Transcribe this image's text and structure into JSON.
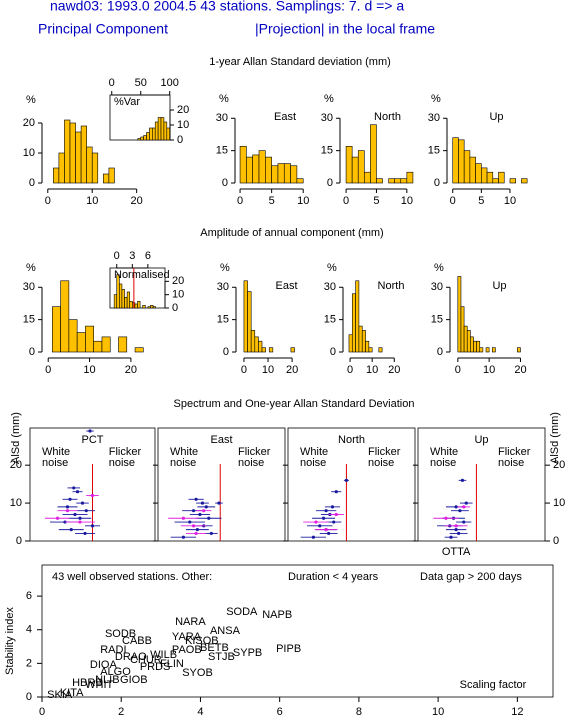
{
  "header": {
    "title": "nawd03: 1993.0 2004.5 43  stations. Samplings: 7. d => a",
    "left": "Principal Component",
    "right": "|Projection| in the local frame",
    "sections": [
      "1-year Allan Standard deviation  (mm)",
      "Amplitude of annual component (mm)",
      "Spectrum and One-year Allan Standard Deviation"
    ]
  },
  "chart_data": [
    {
      "type": "histogram",
      "ylabel": "%",
      "color": "#ffc000",
      "bins": [
        1.25,
        2.5,
        3.75,
        5,
        6.25,
        7.5,
        8.75,
        10,
        11.25,
        12.5,
        13.75,
        15
      ],
      "values": [
        5,
        10,
        21,
        20,
        17,
        19,
        12,
        10,
        0,
        3,
        5
      ],
      "xlim": [
        -1.3,
        23
      ],
      "ylim": [
        0,
        27
      ],
      "xticks": [
        0,
        10,
        20
      ],
      "yticks": [
        0,
        10,
        20
      ]
    },
    {
      "type": "histogram",
      "label": "%Var",
      "color": "#ffc000",
      "bins": [
        45,
        50,
        55,
        60,
        65,
        70,
        75,
        80,
        85,
        90,
        95,
        100
      ],
      "values": [
        1,
        2,
        3,
        5,
        8,
        8,
        12,
        15,
        15,
        12,
        8
      ],
      "xlim": [
        -3,
        100.5
      ],
      "ylim": [
        0,
        30
      ],
      "xticks": [
        0,
        50,
        100
      ],
      "yticks": [
        0,
        10,
        20
      ]
    },
    {
      "type": "histogram",
      "ylabel": "%",
      "label": "East",
      "color": "#ffc000",
      "bins": [
        0,
        1,
        2,
        3,
        4,
        5,
        6,
        7,
        8,
        9,
        10
      ],
      "values": [
        17,
        12,
        13,
        15,
        12,
        8,
        9,
        9,
        8,
        2
      ],
      "xlim": [
        -0.8,
        12.5
      ],
      "ylim": [
        0,
        38
      ],
      "xticks": [
        0,
        5,
        10
      ],
      "yticks": [
        0,
        15,
        30
      ]
    },
    {
      "type": "histogram",
      "ylabel": "%",
      "label": "North",
      "color": "#ffc000",
      "bins": [
        0,
        1,
        2,
        3,
        4,
        5,
        6,
        7,
        8,
        9,
        10,
        11
      ],
      "values": [
        17,
        12,
        15,
        5,
        27,
        2,
        0,
        2,
        2,
        2,
        5
      ],
      "xlim": [
        -1,
        12
      ],
      "ylim": [
        0,
        38
      ],
      "xticks": [
        0,
        5,
        10
      ],
      "yticks": [
        0,
        15,
        30
      ]
    },
    {
      "type": "histogram",
      "ylabel": "%",
      "label": "Up",
      "color": "#ffc000",
      "bins": [
        0,
        1,
        2,
        3,
        4,
        5,
        6,
        7,
        8,
        9,
        10,
        11,
        12,
        13
      ],
      "values": [
        21,
        20,
        15,
        12,
        9,
        7,
        5,
        2,
        5,
        0,
        2,
        0,
        2
      ],
      "xlim": [
        -1,
        13.5
      ],
      "ylim": [
        0,
        38
      ],
      "xticks": [
        0,
        5,
        10
      ],
      "yticks": [
        0,
        15,
        30
      ]
    },
    {
      "type": "histogram",
      "ylabel": "%",
      "color": "#ffc000",
      "bins": [
        1,
        3,
        5,
        7,
        9,
        11,
        13,
        15,
        17,
        19,
        21,
        23,
        25
      ],
      "values": [
        21,
        33,
        15,
        9,
        12,
        5,
        7,
        0,
        7,
        0,
        2,
        0
      ],
      "xlim": [
        -1.5,
        28
      ],
      "ylim": [
        0,
        38
      ],
      "xticks": [
        0,
        10,
        20
      ],
      "yticks": [
        0,
        15,
        30
      ]
    },
    {
      "type": "histogram",
      "label": "Normalised",
      "color": "#ffc000",
      "vline": 3.3,
      "vline_color": "#e00000",
      "bins": [
        -0.5,
        0,
        0.5,
        1,
        1.5,
        2,
        2.5,
        3,
        3.5,
        4,
        4.5,
        5,
        5.5,
        6,
        6.5,
        7,
        7.5
      ],
      "values": [
        10,
        25,
        18,
        14,
        8,
        12,
        5,
        4,
        3,
        5,
        0,
        2,
        0,
        1,
        2,
        1
      ],
      "xlim": [
        -1.3,
        9.3
      ],
      "ylim": [
        0,
        30
      ],
      "xticks": [
        0,
        3,
        6
      ],
      "yticks": [
        0,
        10,
        20
      ]
    },
    {
      "type": "histogram",
      "ylabel": "%",
      "label": "East",
      "color": "#ffc000",
      "bins": [
        0,
        1.5,
        3,
        4.5,
        6,
        7.5,
        9,
        10.5,
        12,
        13.5,
        15,
        16.5,
        18,
        19.5,
        21
      ],
      "values": [
        33,
        28,
        10,
        7,
        5,
        2,
        0,
        2,
        0,
        0,
        0,
        0,
        0,
        2
      ],
      "xlim": [
        -3.3,
        32
      ],
      "ylim": [
        0,
        38
      ],
      "xticks": [
        0,
        10,
        20
      ],
      "yticks": [
        0,
        15,
        30
      ]
    },
    {
      "type": "histogram",
      "ylabel": "%",
      "label": "North",
      "color": "#ffc000",
      "bins": [
        -0.5,
        1,
        2.5,
        4,
        5.5,
        7,
        8.5,
        10,
        11.5,
        13,
        14.5
      ],
      "values": [
        8,
        27,
        33,
        12,
        10,
        5,
        2,
        0,
        0,
        2
      ],
      "xlim": [
        -3.2,
        33
      ],
      "ylim": [
        0,
        38
      ],
      "xticks": [
        0,
        10,
        20
      ],
      "yticks": [
        0,
        15,
        30
      ]
    },
    {
      "type": "histogram",
      "ylabel": "%",
      "label": "Up",
      "color": "#ffc000",
      "bins": [
        0,
        1,
        2,
        3,
        4,
        5,
        6,
        7,
        8,
        9,
        10,
        11,
        12,
        13,
        14,
        15,
        16,
        17,
        18,
        19,
        20
      ],
      "values": [
        35,
        21,
        12,
        10,
        7,
        5,
        5,
        2,
        0,
        2,
        0,
        2,
        0,
        0,
        0,
        0,
        0,
        0,
        0,
        2
      ],
      "xlim": [
        -2.5,
        24
      ],
      "ylim": [
        0,
        38
      ],
      "xticks": [
        0,
        10,
        20
      ],
      "yticks": [
        0,
        15,
        30
      ]
    },
    {
      "type": "scatter",
      "title": "PCT",
      "ylabel": "AlSd (mm)",
      "annotations": [
        "White noise",
        "Flicker noise"
      ],
      "vline": 0.5,
      "vline_color": "#e00000",
      "xlim": [
        0,
        1
      ],
      "ylim": [
        0,
        29.8
      ],
      "yticks": [
        0,
        10,
        20
      ],
      "series": [
        {
          "color": "#1a1aa0",
          "x": [
            0.35,
            0.38,
            0.32,
            0.42,
            0.3,
            0.45,
            0.36,
            0.4,
            0.28,
            0.5,
            0.33,
            0.44,
            0.48
          ],
          "values": [
            14,
            13,
            11,
            10,
            9,
            8,
            7,
            6,
            5,
            4,
            3,
            2,
            29
          ],
          "xerr": [
            0.05,
            0.04,
            0.06,
            0.05,
            0.08,
            0.07,
            0.1,
            0.09,
            0.12,
            0.06,
            0.1,
            0.08,
            0.03
          ]
        },
        {
          "color": "#e020e0",
          "x": [
            0.22,
            0.3,
            0.4,
            0.5
          ],
          "values": [
            6,
            8,
            5,
            12
          ],
          "xerr": [
            0.1,
            0.08,
            0.12,
            0.05
          ]
        }
      ]
    },
    {
      "type": "scatter",
      "title": "East",
      "annotations": [
        "White noise",
        "Flicker noise"
      ],
      "vline": 0.49,
      "vline_color": "#e00000",
      "xlim": [
        0,
        1
      ],
      "ylim": [
        0,
        29.8
      ],
      "yticks": [
        0,
        10,
        20
      ],
      "series": [
        {
          "color": "#1a1aa0",
          "x": [
            0.3,
            0.35,
            0.38,
            0.28,
            0.33,
            0.4,
            0.25,
            0.36,
            0.31,
            0.42,
            0.2,
            0.48
          ],
          "values": [
            11,
            10,
            9,
            8,
            7,
            6,
            5,
            4,
            3,
            2,
            1,
            10
          ],
          "xerr": [
            0.06,
            0.05,
            0.07,
            0.09,
            0.08,
            0.1,
            0.12,
            0.07,
            0.09,
            0.05,
            0.1,
            0.03
          ]
        },
        {
          "color": "#e020e0",
          "x": [
            0.2,
            0.28,
            0.36,
            0.3
          ],
          "values": [
            6,
            4,
            8,
            2
          ],
          "xerr": [
            0.12,
            0.1,
            0.06,
            0.08
          ]
        }
      ]
    },
    {
      "type": "scatter",
      "title": "North",
      "annotations": [
        "White noise",
        "Flicker noise"
      ],
      "vline": 0.46,
      "vline_color": "#e00000",
      "xlim": [
        0,
        1
      ],
      "ylim": [
        0,
        29.8
      ],
      "yticks": [
        0,
        10,
        20
      ],
      "series": [
        {
          "color": "#1a1aa0",
          "x": [
            0.38,
            0.35,
            0.3,
            0.33,
            0.28,
            0.36,
            0.25,
            0.3,
            0.32,
            0.2,
            0.46
          ],
          "values": [
            13,
            9,
            8,
            7,
            6,
            5,
            4,
            3,
            2,
            1,
            16
          ],
          "xerr": [
            0.04,
            0.06,
            0.08,
            0.07,
            0.09,
            0.06,
            0.1,
            0.08,
            0.07,
            0.1,
            0.02
          ]
        },
        {
          "color": "#e020e0",
          "x": [
            0.22,
            0.3,
            0.38
          ],
          "values": [
            5,
            3,
            7
          ],
          "xerr": [
            0.1,
            0.09,
            0.06
          ]
        }
      ]
    },
    {
      "type": "scatter",
      "title": "Up",
      "ylabel": "AlSd (mm)",
      "note": "OTTA",
      "annotations": [
        "White noise",
        "Flicker noise"
      ],
      "vline": 0.46,
      "vline_color": "#e00000",
      "xlim": [
        0,
        1
      ],
      "ylim": [
        0,
        29.8
      ],
      "yticks": [
        0,
        10,
        20
      ],
      "series": [
        {
          "color": "#1a1aa0",
          "x": [
            0.35,
            0.38,
            0.3,
            0.33,
            0.28,
            0.36,
            0.25,
            0.3,
            0.32,
            0.26
          ],
          "values": [
            16,
            10,
            9,
            8,
            6,
            5,
            4,
            3,
            2,
            1
          ],
          "xerr": [
            0.03,
            0.05,
            0.08,
            0.07,
            0.09,
            0.06,
            0.1,
            0.08,
            0.07,
            0.05
          ]
        },
        {
          "color": "#e020e0",
          "x": [
            0.22,
            0.3,
            0.36
          ],
          "values": [
            6,
            4,
            9
          ],
          "xerr": [
            0.1,
            0.09,
            0.05
          ]
        }
      ]
    },
    {
      "type": "label-scatter",
      "xlabel": "Scaling factor",
      "ylabel": "Stability index",
      "xlim": [
        0,
        12.9
      ],
      "ylim": [
        0,
        7.85
      ],
      "xticks": [
        0,
        2,
        4,
        6,
        8,
        10,
        12
      ],
      "yticks": [
        0,
        2,
        4,
        6
      ],
      "series": [
        {
          "name": "43  well observed stations. Other:",
          "color": "#0000c8",
          "labels": [
            "NARA",
            "ANSA",
            "YARA",
            "NAPB",
            "KISOB",
            "PAOB",
            "BETB",
            "STJB",
            "SYPB",
            "SYOB",
            "GIOB",
            "CHUR",
            "WILB",
            "PRDS",
            "ALGO",
            "DRAO",
            "FLIN",
            "NLIB"
          ],
          "x": [
            3.36,
            4.24,
            3.28,
            5.56,
            3.61,
            3.28,
            3.99,
            4.19,
            4.82,
            3.54,
            1.97,
            2.22,
            2.73,
            2.47,
            1.47,
            1.84,
            2.98,
            1.34
          ],
          "values": [
            4.46,
            3.93,
            3.57,
            4.88,
            3.33,
            2.8,
            2.92,
            2.38,
            2.62,
            1.43,
            1.01,
            2.2,
            2.5,
            1.79,
            1.49,
            2.38,
            1.96,
            1.01
          ]
        },
        {
          "name": "Duration < 4 years",
          "color": "#e020e0",
          "labels": [
            "SODA",
            "PIPB",
            "RADI",
            "WHIT",
            "SKIA"
          ],
          "x": [
            4.65,
            5.91,
            1.47,
            1.09,
            0.13
          ],
          "values": [
            5.06,
            2.86,
            2.8,
            0.71,
            0.1
          ]
        },
        {
          "name": "Data gap > 200 days",
          "color": "#006a6a",
          "labels": [
            "SODB",
            "CABB",
            "DIOA",
            "HBRB",
            "KITA"
          ],
          "x": [
            1.59,
            2.02,
            1.21,
            0.76,
            0.45
          ],
          "values": [
            3.75,
            3.33,
            1.9,
            0.83,
            0.24
          ]
        }
      ]
    }
  ]
}
